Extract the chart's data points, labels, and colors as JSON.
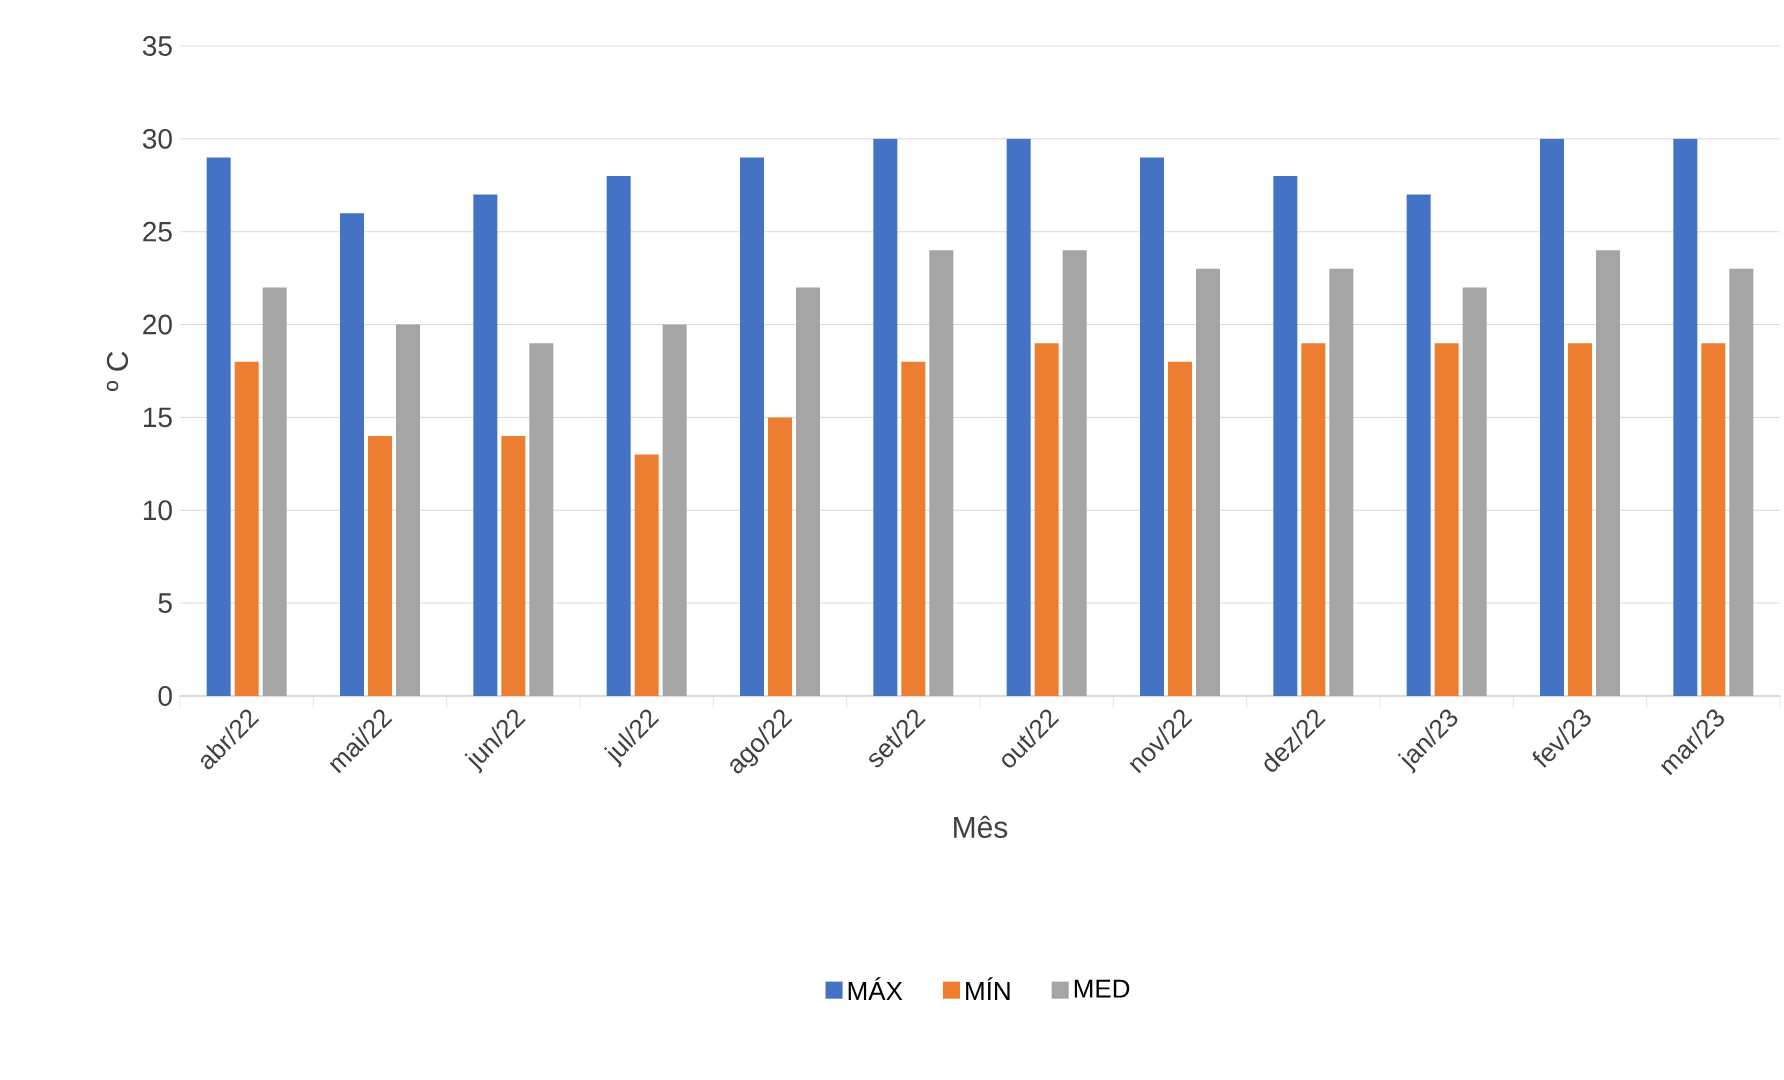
{
  "chart_data": {
    "type": "bar",
    "xlabel": "Mês",
    "ylabel": "º C",
    "categories": [
      "abr/22",
      "mai/22",
      "jun/22",
      "jul/22",
      "ago/22",
      "set/22",
      "out/22",
      "nov/22",
      "dez/22",
      "jan/23",
      "fev/23",
      "mar/23"
    ],
    "series": [
      {
        "name": "MÁX",
        "color": "#4472c4",
        "values": [
          29,
          26,
          27,
          28,
          29,
          30,
          30,
          29,
          28,
          27,
          30,
          30
        ]
      },
      {
        "name": "MÍN",
        "color": "#ed7d31",
        "values": [
          18,
          14,
          14,
          13,
          15,
          18,
          19,
          18,
          19,
          19,
          19,
          19
        ]
      },
      {
        "name": "MED",
        "color": "#a5a5a5",
        "values": [
          22,
          20,
          19,
          20,
          22,
          24,
          24,
          23,
          23,
          22,
          24,
          23
        ]
      }
    ],
    "ylim": [
      0,
      35
    ],
    "yticks": [
      0,
      5,
      10,
      15,
      20,
      25,
      30,
      35
    ],
    "grid": "y",
    "legend": "bottom"
  }
}
